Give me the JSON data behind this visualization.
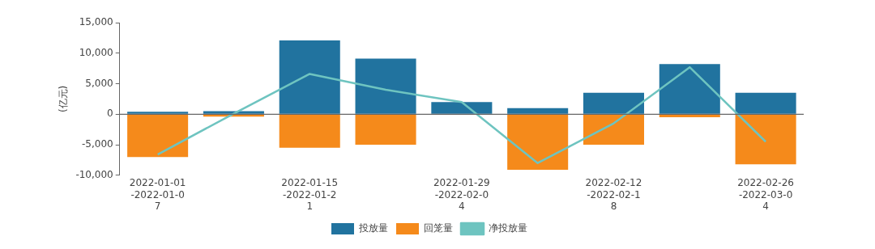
{
  "chart_data": {
    "type": "bar",
    "stacked": true,
    "ylabel": "(亿元)",
    "categories": [
      "2022-01-01-2022-01-07",
      null,
      "2022-01-15-2022-01-21",
      null,
      "2022-01-29-2022-02-04",
      null,
      "2022-02-12-2022-02-18",
      null,
      "2022-02-26-2022-03-04"
    ],
    "series": [
      {
        "name": "投放量",
        "color": "#21739f",
        "values": [
          400,
          500,
          12100,
          9100,
          2000,
          1000,
          3500,
          8200,
          3500
        ]
      },
      {
        "name": "回笼量",
        "color": "#f58a1b",
        "values": [
          -7000,
          -400,
          -5500,
          -5000,
          0,
          -9100,
          -5000,
          -500,
          -8200
        ]
      },
      {
        "name": "净投放量",
        "type": "line",
        "color": "#6ec4c0",
        "marker": "none",
        "values": [
          -6600,
          100,
          6600,
          4000,
          2000,
          -8000,
          -1500,
          7700,
          -4500
        ]
      }
    ],
    "ylim": [
      -10000,
      15000
    ],
    "yticks": [
      {
        "value": -10000,
        "label": "-10,000"
      },
      {
        "value": -5000,
        "label": "-5,000"
      },
      0,
      {
        "value": 5000,
        "label": "5,000"
      },
      {
        "value": 10000,
        "label": "10,000"
      },
      {
        "value": 15000,
        "label": "15,000"
      }
    ],
    "ref_lines": [
      {
        "axis": "y",
        "value": 0,
        "color": "#666666"
      }
    ],
    "grid": false,
    "legend": "bottom"
  }
}
